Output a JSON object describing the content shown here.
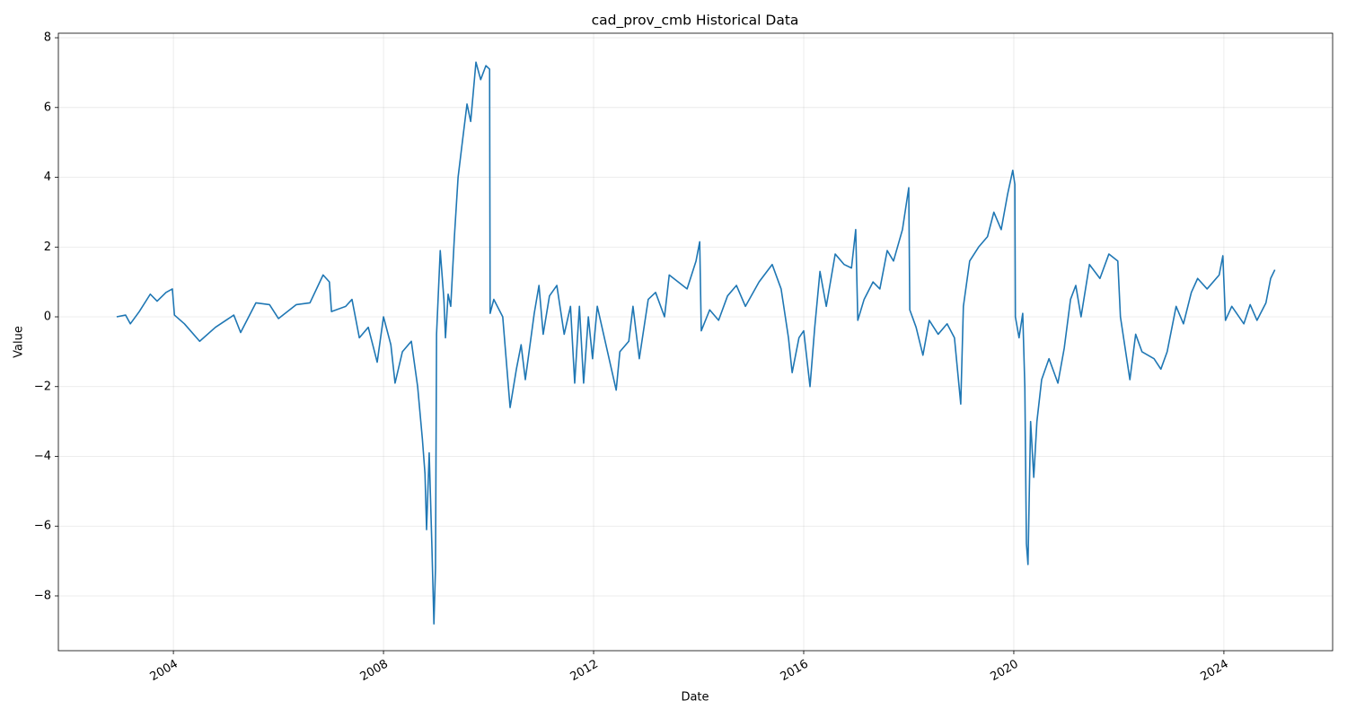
{
  "chart_data": {
    "type": "line",
    "title": "cad_prov_cmb Historical Data",
    "x_label": "Date",
    "y_label": "Value",
    "color": "#1f77b4",
    "grid": true,
    "xlim": [
      2001.81,
      2026.07
    ],
    "ylim": [
      -9.57,
      8.13
    ],
    "xticks": [
      2004,
      2008,
      2012,
      2016,
      2020,
      2024
    ],
    "yticks": [
      {
        "value": -8,
        "label": "−8"
      },
      {
        "value": -6,
        "label": "−6"
      },
      {
        "value": -4,
        "label": "−4"
      },
      {
        "value": -2,
        "label": "−2"
      },
      0,
      2,
      4,
      6,
      8
    ],
    "x": [
      2002.92,
      2003.09,
      2003.18,
      2003.35,
      2003.56,
      2003.69,
      2003.86,
      2003.98,
      2004.02,
      2004.21,
      2004.5,
      2004.8,
      2005.15,
      2005.28,
      2005.57,
      2005.83,
      2006.0,
      2006.34,
      2006.6,
      2006.85,
      2006.97,
      2007.01,
      2007.28,
      2007.4,
      2007.54,
      2007.71,
      2007.88,
      2008.0,
      2008.14,
      2008.22,
      2008.36,
      2008.53,
      2008.65,
      2008.74,
      2008.79,
      2008.82,
      2008.87,
      2008.92,
      2008.96,
      2008.99,
      2009.01,
      2009.08,
      2009.15,
      2009.18,
      2009.23,
      2009.28,
      2009.35,
      2009.42,
      2009.5,
      2009.59,
      2009.66,
      2009.76,
      2009.85,
      2009.95,
      2010.02,
      2010.03,
      2010.1,
      2010.27,
      2010.41,
      2010.53,
      2010.62,
      2010.7,
      2010.87,
      2010.96,
      2011.04,
      2011.16,
      2011.3,
      2011.44,
      2011.56,
      2011.64,
      2011.73,
      2011.81,
      2011.9,
      2011.98,
      2012.07,
      2012.19,
      2012.43,
      2012.5,
      2012.67,
      2012.75,
      2012.87,
      2013.04,
      2013.18,
      2013.35,
      2013.44,
      2013.61,
      2013.78,
      2013.95,
      2014.02,
      2014.05,
      2014.21,
      2014.38,
      2014.55,
      2014.72,
      2014.89,
      2015.15,
      2015.4,
      2015.57,
      2015.71,
      2015.78,
      2015.91,
      2016.0,
      2016.12,
      2016.21,
      2016.31,
      2016.43,
      2016.6,
      2016.77,
      2016.91,
      2016.99,
      2017.03,
      2017.15,
      2017.32,
      2017.45,
      2017.59,
      2017.71,
      2017.88,
      2018.0,
      2018.02,
      2018.14,
      2018.27,
      2018.39,
      2018.56,
      2018.73,
      2018.87,
      2018.99,
      2019.04,
      2019.16,
      2019.33,
      2019.5,
      2019.62,
      2019.76,
      2019.88,
      2019.98,
      2020.02,
      2020.03,
      2020.1,
      2020.17,
      2020.21,
      2020.24,
      2020.27,
      2020.32,
      2020.38,
      2020.44,
      2020.53,
      2020.67,
      2020.84,
      2020.96,
      2021.08,
      2021.18,
      2021.28,
      2021.44,
      2021.64,
      2021.81,
      2021.98,
      2022.03,
      2022.21,
      2022.32,
      2022.44,
      2022.67,
      2022.8,
      2022.92,
      2023.09,
      2023.23,
      2023.38,
      2023.5,
      2023.68,
      2023.91,
      2023.98,
      2024.03,
      2024.15,
      2024.38,
      2024.5,
      2024.63,
      2024.8,
      2024.89,
      2024.97
    ],
    "values": [
      0.0,
      0.05,
      -0.2,
      0.15,
      0.65,
      0.45,
      0.7,
      0.8,
      0.05,
      -0.2,
      -0.7,
      -0.3,
      0.05,
      -0.45,
      0.4,
      0.35,
      -0.05,
      0.35,
      0.4,
      1.2,
      1.0,
      0.15,
      0.3,
      0.5,
      -0.6,
      -0.3,
      -1.3,
      0.0,
      -0.8,
      -1.9,
      -1.0,
      -0.7,
      -2.0,
      -3.5,
      -4.5,
      -6.1,
      -3.9,
      -6.5,
      -8.8,
      -7.2,
      -0.5,
      1.9,
      0.5,
      -0.6,
      0.65,
      0.3,
      2.3,
      4.0,
      5.0,
      6.1,
      5.6,
      7.3,
      6.8,
      7.2,
      7.1,
      0.1,
      0.5,
      0.0,
      -2.6,
      -1.5,
      -0.8,
      -1.8,
      0.1,
      0.9,
      -0.5,
      0.6,
      0.9,
      -0.5,
      0.3,
      -1.9,
      0.3,
      -1.9,
      0.0,
      -1.2,
      0.3,
      -0.5,
      -2.1,
      -1.0,
      -0.7,
      0.3,
      -1.2,
      0.5,
      0.7,
      0.0,
      1.2,
      1.0,
      0.8,
      1.6,
      2.15,
      -0.4,
      0.2,
      -0.1,
      0.6,
      0.9,
      0.3,
      1.0,
      1.5,
      0.8,
      -0.6,
      -1.6,
      -0.6,
      -0.4,
      -2.0,
      -0.3,
      1.3,
      0.3,
      1.8,
      1.5,
      1.4,
      2.5,
      -0.1,
      0.5,
      1.0,
      0.8,
      1.9,
      1.6,
      2.5,
      3.7,
      0.2,
      -0.3,
      -1.1,
      -0.1,
      -0.5,
      -0.2,
      -0.6,
      -2.5,
      0.3,
      1.6,
      2.0,
      2.3,
      3.0,
      2.5,
      3.5,
      4.2,
      3.8,
      0.0,
      -0.6,
      0.1,
      -2.0,
      -6.5,
      -7.1,
      -3.0,
      -4.6,
      -3.0,
      -1.8,
      -1.2,
      -1.9,
      -0.9,
      0.5,
      0.9,
      0.0,
      1.5,
      1.1,
      1.8,
      1.6,
      0.0,
      -1.8,
      -0.5,
      -1.0,
      -1.2,
      -1.5,
      -1.0,
      0.3,
      -0.2,
      0.7,
      1.1,
      0.8,
      1.2,
      1.75,
      -0.1,
      0.3,
      -0.2,
      0.35,
      -0.1,
      0.4,
      1.1,
      1.35
    ]
  }
}
